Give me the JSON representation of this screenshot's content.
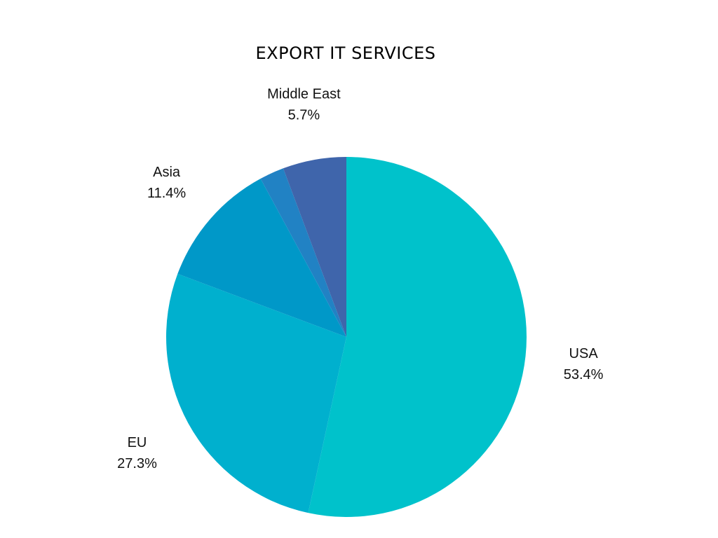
{
  "chart_data": {
    "type": "pie",
    "title": "EXPORT IT SERVICES",
    "slices": [
      {
        "label": "USA",
        "value": 53.4,
        "value_label": "53.4%",
        "color": "#00C2CB"
      },
      {
        "label": "EU",
        "value": 27.3,
        "value_label": "27.3%",
        "color": "#00B0CE"
      },
      {
        "label": "Asia",
        "value": 11.4,
        "value_label": "11.4%",
        "color": "#0098C8"
      },
      {
        "label": "",
        "value": 2.2,
        "value_label": "",
        "color": "#2182C4"
      },
      {
        "label": "Middle East",
        "value": 5.7,
        "value_label": "5.7%",
        "color": "#3F65AB"
      }
    ],
    "start_angle": "top",
    "direction": "clockwise",
    "legend": "none"
  }
}
